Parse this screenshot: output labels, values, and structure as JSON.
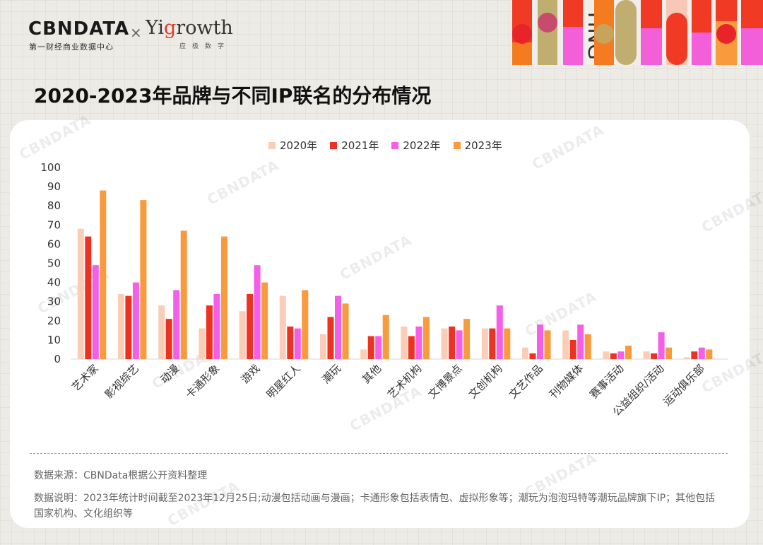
{
  "header": {
    "cbn_logo": "CBNDATA",
    "cbn_sub": "第一财经商业数据中心",
    "cross": "×",
    "yigrowth_logo_a": "Yi",
    "yigrowth_logo_g": "g",
    "yigrowth_logo_b": "rowth",
    "yigrowth_sub": "应极数字"
  },
  "page_title": "2020-2023年品牌与不同IP联名的分布情况",
  "watermark_text": "CBNDATA",
  "chart_data": {
    "type": "bar",
    "title": "2020-2023年品牌与不同IP联名的分布情况",
    "xlabel": "",
    "ylabel": "",
    "ylim": [
      0,
      100
    ],
    "yticks": [
      "0",
      "10",
      "20",
      "30",
      "40",
      "50",
      "60",
      "70",
      "80",
      "90",
      "100"
    ],
    "grid": false,
    "legend_position": "top-center",
    "categories": [
      "艺术家",
      "影视综艺",
      "动漫",
      "卡通形象",
      "游戏",
      "明星红人",
      "潮玩",
      "其他",
      "艺术机构",
      "文博景点",
      "文创机构",
      "文艺作品",
      "刊物媒体",
      "赛事活动",
      "公益组织/活动",
      "运动俱乐部"
    ],
    "series": [
      {
        "name": "2020年",
        "color": "#f9cdb6",
        "values": [
          68,
          34,
          28,
          16,
          25,
          33,
          13,
          5,
          17,
          16,
          16,
          6,
          15,
          4,
          4,
          1
        ]
      },
      {
        "name": "2021年",
        "color": "#ee3222",
        "values": [
          64,
          33,
          21,
          28,
          34,
          17,
          22,
          12,
          12,
          17,
          16,
          3,
          10,
          3,
          3,
          4
        ]
      },
      {
        "name": "2022年",
        "color": "#f55ee6",
        "values": [
          49,
          40,
          36,
          34,
          49,
          16,
          33,
          12,
          17,
          15,
          28,
          18,
          18,
          4,
          14,
          6
        ]
      },
      {
        "name": "2023年",
        "color": "#f99a3c",
        "values": [
          88,
          83,
          67,
          64,
          40,
          36,
          29,
          23,
          22,
          21,
          16,
          15,
          13,
          7,
          6,
          5
        ]
      }
    ]
  },
  "notes": {
    "source": "数据来源：CBNData根据公开资料整理",
    "explanation": "数据说明：2023年统计时间截至2023年12月25日;动漫包括动画与漫画；卡通形象包括表情包、虚拟形象等；潮玩为泡泡玛特等潮玩品牌旗下IP；其他包括国家机构、文化组织等"
  },
  "deco_text": "YING"
}
